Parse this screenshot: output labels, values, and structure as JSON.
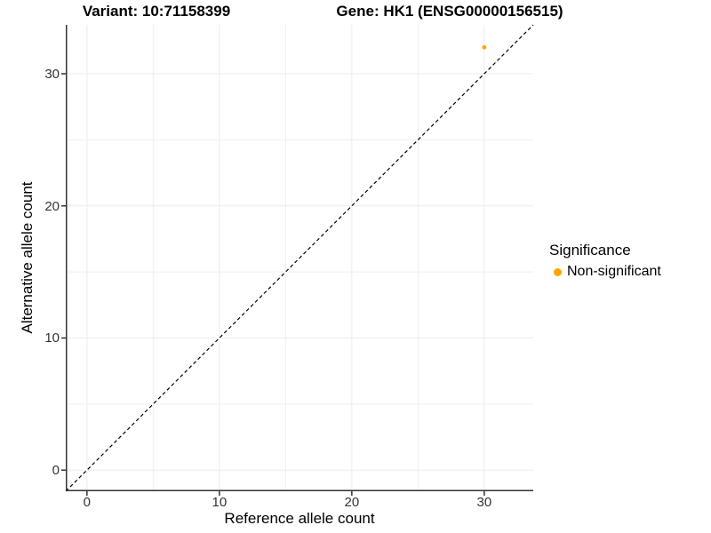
{
  "colors": {
    "background": "#ffffff",
    "point": "#FFA500",
    "grid": "#ECECEC",
    "grid_minor": "#EFEFEF",
    "axis_line": "#333333",
    "tick_text": "#333333",
    "text": "#000000",
    "dashed_line": "#000000"
  },
  "chart_data": {
    "type": "scatter",
    "title_left": "Variant: 10:71158399",
    "title_right": "Gene: HK1 (ENSG00000156515)",
    "xlabel": "Reference allele count",
    "ylabel": "Alternative allele count",
    "xlim": [
      -1.6,
      33.7
    ],
    "ylim": [
      -1.6,
      33.7
    ],
    "x_ticks": [
      0,
      10,
      20,
      30
    ],
    "y_ticks": [
      0,
      10,
      20,
      30
    ],
    "minor_gridlines": [
      5,
      15,
      25
    ],
    "grid": true,
    "points": [
      {
        "x": 30,
        "y": 32,
        "series": "Non-significant",
        "color": "#FFA500",
        "radius": 2.4
      }
    ],
    "identity_line": {
      "style": "dashed",
      "from": -1.6,
      "to": 33.7
    },
    "legend": {
      "title": "Significance",
      "position": "right",
      "entries": [
        {
          "label": "Non-significant",
          "color": "#FFA500"
        }
      ]
    }
  }
}
